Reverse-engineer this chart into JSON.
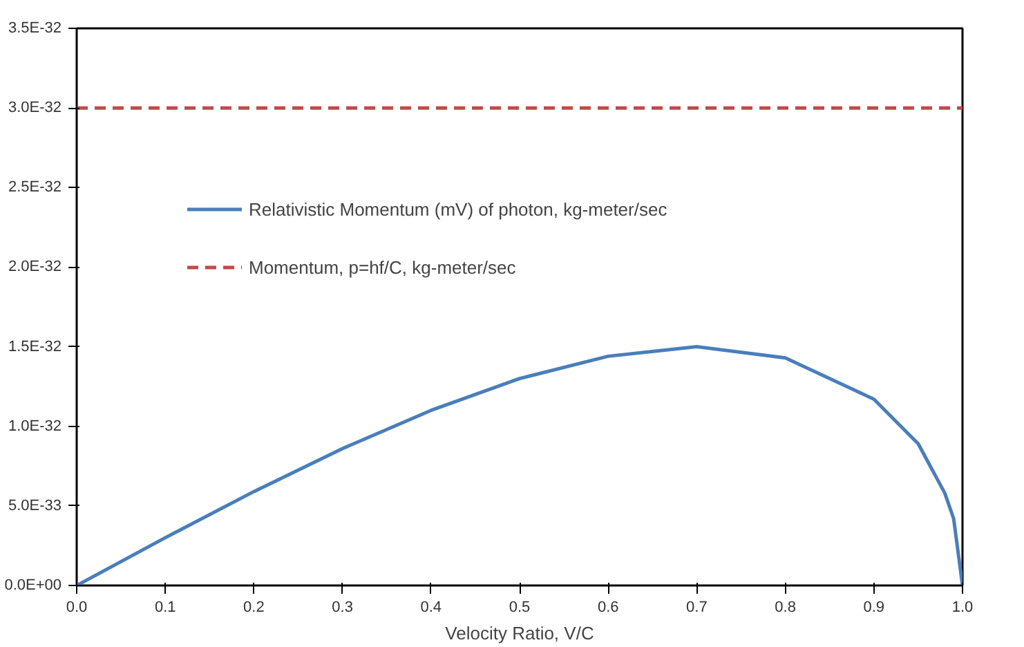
{
  "chart_data": {
    "type": "line",
    "xlabel": "Velocity Ratio, V/C",
    "xlim": [
      0,
      1
    ],
    "xticks": [
      {
        "value": 0,
        "label": "0.0"
      },
      {
        "value": 0.1,
        "label": "0.1"
      },
      {
        "value": 0.2,
        "label": "0.2"
      },
      {
        "value": 0.3,
        "label": "0.3"
      },
      {
        "value": 0.4,
        "label": "0.4"
      },
      {
        "value": 0.5,
        "label": "0.5"
      },
      {
        "value": 0.6,
        "label": "0.6"
      },
      {
        "value": 0.7,
        "label": "0.7"
      },
      {
        "value": 0.8,
        "label": "0.8"
      },
      {
        "value": 0.9,
        "label": "0.9"
      },
      {
        "value": 1,
        "label": "1.0"
      }
    ],
    "ylim": [
      0,
      3.5e-32
    ],
    "yticks": [
      {
        "value": 0,
        "label": "0.0E+00"
      },
      {
        "value": 5e-33,
        "label": "5.0E-33"
      },
      {
        "value": 1e-32,
        "label": "1.0E-32"
      },
      {
        "value": 1.5e-32,
        "label": "1.5E-32"
      },
      {
        "value": 2e-32,
        "label": "2.0E-32"
      },
      {
        "value": 2.5e-32,
        "label": "2.5E-32"
      },
      {
        "value": 3e-32,
        "label": "3.0E-32"
      },
      {
        "value": 3.5e-32,
        "label": "3.5E-32"
      }
    ],
    "series": [
      {
        "name": "Relativistic Momentum (mV) of photon, kg-meter/sec",
        "color": "#4a7ebb",
        "line_style": "solid",
        "x": [
          0,
          0.1,
          0.2,
          0.3,
          0.4,
          0.5,
          0.6,
          0.7,
          0.8,
          0.9,
          0.95,
          0.98,
          0.99,
          1.0
        ],
        "values": [
          0,
          3e-33,
          5.9e-33,
          8.6e-33,
          1.1e-32,
          1.3e-32,
          1.44e-32,
          1.5e-32,
          1.43e-32,
          1.17e-32,
          8.9e-33,
          5.8e-33,
          4.2e-33,
          0
        ]
      },
      {
        "name": "Momentum, p=hf/C, kg-meter/sec",
        "color": "#be4b48",
        "line_style": "dashed",
        "x": [
          0,
          1
        ],
        "values": [
          3e-32,
          3e-32
        ]
      }
    ],
    "grid": false,
    "legend": "top left",
    "marker": "none"
  }
}
